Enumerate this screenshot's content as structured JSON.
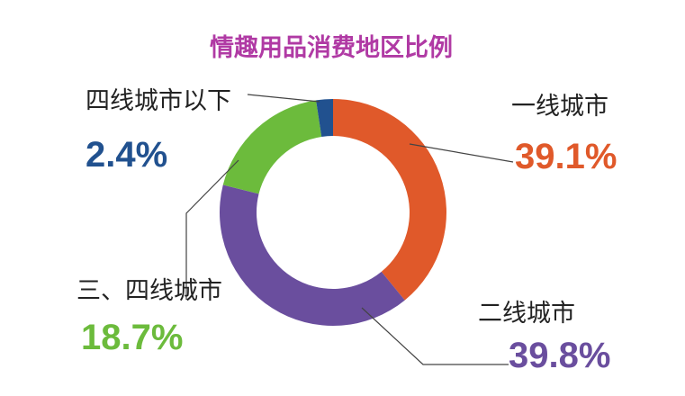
{
  "chart_data": {
    "type": "pie",
    "title": "情趣用品消费地区比例",
    "slices": [
      {
        "label": "一线城市",
        "value_text": "39.1%",
        "value": 39.1,
        "color": "#e0592a"
      },
      {
        "label": "二线城市",
        "value_text": "39.8%",
        "value": 39.8,
        "color": "#6a4e9e"
      },
      {
        "label": "三、四线城市",
        "value_text": "18.7%",
        "value": 18.7,
        "color": "#6cbb3c"
      },
      {
        "label": "四线城市以下",
        "value_text": "2.4%",
        "value": 2.4,
        "color": "#21518f"
      }
    ],
    "title_color": "#b03aa4",
    "leader_color": "#444444",
    "label_color": "#222222",
    "style": "donut"
  }
}
